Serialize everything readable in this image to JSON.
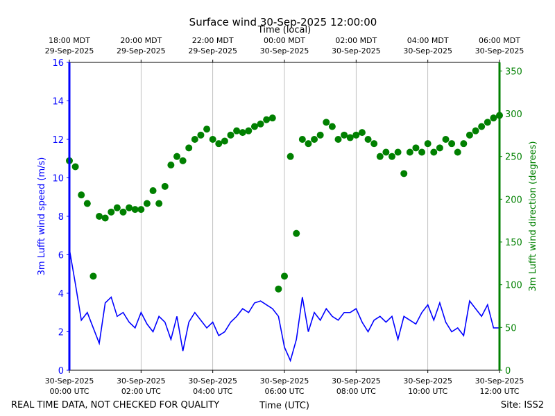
{
  "chart_data": {
    "type": "line",
    "title": "Surface wind 30-Sep-2025 12:00:00",
    "top_xlabel": "Time (local)",
    "xlabel": "Time (UTC)",
    "ylabel": "3m Lufft wind speed (m/s)",
    "y2label": "3m Lufft wind direction (degrees)",
    "footer_left": "REAL TIME DATA, NOT CHECKED FOR QUALITY",
    "footer_right": "Site: ISS2",
    "grid": true,
    "xlim": [
      "2025-09-30T00:00",
      "2025-09-30T12:00"
    ],
    "xticks": [
      {
        "value": "2025-09-30T00:00",
        "label": [
          "30-Sep-2025",
          "00:00 UTC"
        ]
      },
      {
        "value": "2025-09-30T02:00",
        "label": [
          "30-Sep-2025",
          "02:00 UTC"
        ]
      },
      {
        "value": "2025-09-30T04:00",
        "label": [
          "30-Sep-2025",
          "04:00 UTC"
        ]
      },
      {
        "value": "2025-09-30T06:00",
        "label": [
          "30-Sep-2025",
          "06:00 UTC"
        ]
      },
      {
        "value": "2025-09-30T08:00",
        "label": [
          "30-Sep-2025",
          "08:00 UTC"
        ]
      },
      {
        "value": "2025-09-30T10:00",
        "label": [
          "30-Sep-2025",
          "10:00 UTC"
        ]
      },
      {
        "value": "2025-09-30T12:00",
        "label": [
          "30-Sep-2025",
          "12:00 UTC"
        ]
      }
    ],
    "top_xticks": [
      {
        "value": "2025-09-30T00:00",
        "label": [
          "18:00 MDT",
          "29-Sep-2025"
        ]
      },
      {
        "value": "2025-09-30T02:00",
        "label": [
          "20:00 MDT",
          "29-Sep-2025"
        ]
      },
      {
        "value": "2025-09-30T04:00",
        "label": [
          "22:00 MDT",
          "29-Sep-2025"
        ]
      },
      {
        "value": "2025-09-30T06:00",
        "label": [
          "00:00 MDT",
          "30-Sep-2025"
        ]
      },
      {
        "value": "2025-09-30T08:00",
        "label": [
          "02:00 MDT",
          "30-Sep-2025"
        ]
      },
      {
        "value": "2025-09-30T10:00",
        "label": [
          "04:00 MDT",
          "30-Sep-2025"
        ]
      },
      {
        "value": "2025-09-30T12:00",
        "label": [
          "06:00 MDT",
          "30-Sep-2025"
        ]
      }
    ],
    "ylim": [
      0,
      16
    ],
    "yticks": [
      0,
      2,
      4,
      6,
      8,
      10,
      12,
      14,
      16
    ],
    "y2lim": [
      0,
      360
    ],
    "y2ticks": [
      0,
      50,
      100,
      150,
      200,
      250,
      300,
      350
    ],
    "x": [
      "2025-09-30T00:00",
      "2025-09-30T00:10",
      "2025-09-30T00:20",
      "2025-09-30T00:30",
      "2025-09-30T00:40",
      "2025-09-30T00:50",
      "2025-09-30T01:00",
      "2025-09-30T01:10",
      "2025-09-30T01:20",
      "2025-09-30T01:30",
      "2025-09-30T01:40",
      "2025-09-30T01:50",
      "2025-09-30T02:00",
      "2025-09-30T02:10",
      "2025-09-30T02:20",
      "2025-09-30T02:30",
      "2025-09-30T02:40",
      "2025-09-30T02:50",
      "2025-09-30T03:00",
      "2025-09-30T03:10",
      "2025-09-30T03:20",
      "2025-09-30T03:30",
      "2025-09-30T03:40",
      "2025-09-30T03:50",
      "2025-09-30T04:00",
      "2025-09-30T04:10",
      "2025-09-30T04:20",
      "2025-09-30T04:30",
      "2025-09-30T04:40",
      "2025-09-30T04:50",
      "2025-09-30T05:00",
      "2025-09-30T05:10",
      "2025-09-30T05:20",
      "2025-09-30T05:30",
      "2025-09-30T05:40",
      "2025-09-30T05:50",
      "2025-09-30T06:00",
      "2025-09-30T06:10",
      "2025-09-30T06:20",
      "2025-09-30T06:30",
      "2025-09-30T06:40",
      "2025-09-30T06:50",
      "2025-09-30T07:00",
      "2025-09-30T07:10",
      "2025-09-30T07:20",
      "2025-09-30T07:30",
      "2025-09-30T07:40",
      "2025-09-30T07:50",
      "2025-09-30T08:00",
      "2025-09-30T08:10",
      "2025-09-30T08:20",
      "2025-09-30T08:30",
      "2025-09-30T08:40",
      "2025-09-30T08:50",
      "2025-09-30T09:00",
      "2025-09-30T09:10",
      "2025-09-30T09:20",
      "2025-09-30T09:30",
      "2025-09-30T09:40",
      "2025-09-30T09:50",
      "2025-09-30T10:00",
      "2025-09-30T10:10",
      "2025-09-30T10:20",
      "2025-09-30T10:30",
      "2025-09-30T10:40",
      "2025-09-30T10:50",
      "2025-09-30T11:00",
      "2025-09-30T11:10",
      "2025-09-30T11:20",
      "2025-09-30T11:30",
      "2025-09-30T11:40",
      "2025-09-30T11:50",
      "2025-09-30T12:00"
    ],
    "series": [
      {
        "type": "line",
        "color": "#0000ff",
        "values": [
          6.3,
          4.5,
          2.6,
          3.0,
          2.2,
          1.4,
          3.5,
          3.8,
          2.8,
          3.0,
          2.5,
          2.2,
          3.0,
          2.4,
          2.0,
          2.8,
          2.5,
          1.6,
          2.8,
          1.0,
          2.5,
          3.0,
          2.6,
          2.2,
          2.5,
          1.8,
          2.0,
          2.5,
          2.8,
          3.2,
          3.0,
          3.5,
          3.6,
          3.4,
          3.2,
          2.8,
          1.2,
          0.5,
          1.6,
          3.8,
          2.0,
          3.0,
          2.6,
          3.2,
          2.8,
          2.6,
          3.0,
          3.0,
          3.2,
          2.5,
          2.0,
          2.6,
          2.8,
          2.5,
          2.8,
          1.6,
          2.8,
          2.6,
          2.4,
          3.0,
          3.4,
          2.6,
          3.5,
          2.5,
          2.0,
          2.2,
          1.8,
          3.6,
          3.2,
          2.8,
          3.4,
          2.2,
          2.2
        ]
      },
      {
        "type": "scatter",
        "axis": "y2",
        "color": "#008000",
        "values": [
          245,
          238,
          205,
          195,
          110,
          180,
          178,
          185,
          190,
          185,
          190,
          188,
          188,
          195,
          210,
          195,
          215,
          240,
          250,
          245,
          260,
          270,
          275,
          282,
          270,
          265,
          268,
          275,
          280,
          278,
          280,
          285,
          288,
          293,
          295,
          95,
          110,
          250,
          160,
          270,
          265,
          270,
          275,
          290,
          285,
          270,
          275,
          272,
          275,
          278,
          270,
          265,
          250,
          255,
          250,
          255,
          230,
          255,
          260,
          255,
          265,
          255,
          260,
          270,
          265,
          255,
          265,
          275,
          280,
          285,
          290,
          295,
          298
        ]
      }
    ]
  }
}
